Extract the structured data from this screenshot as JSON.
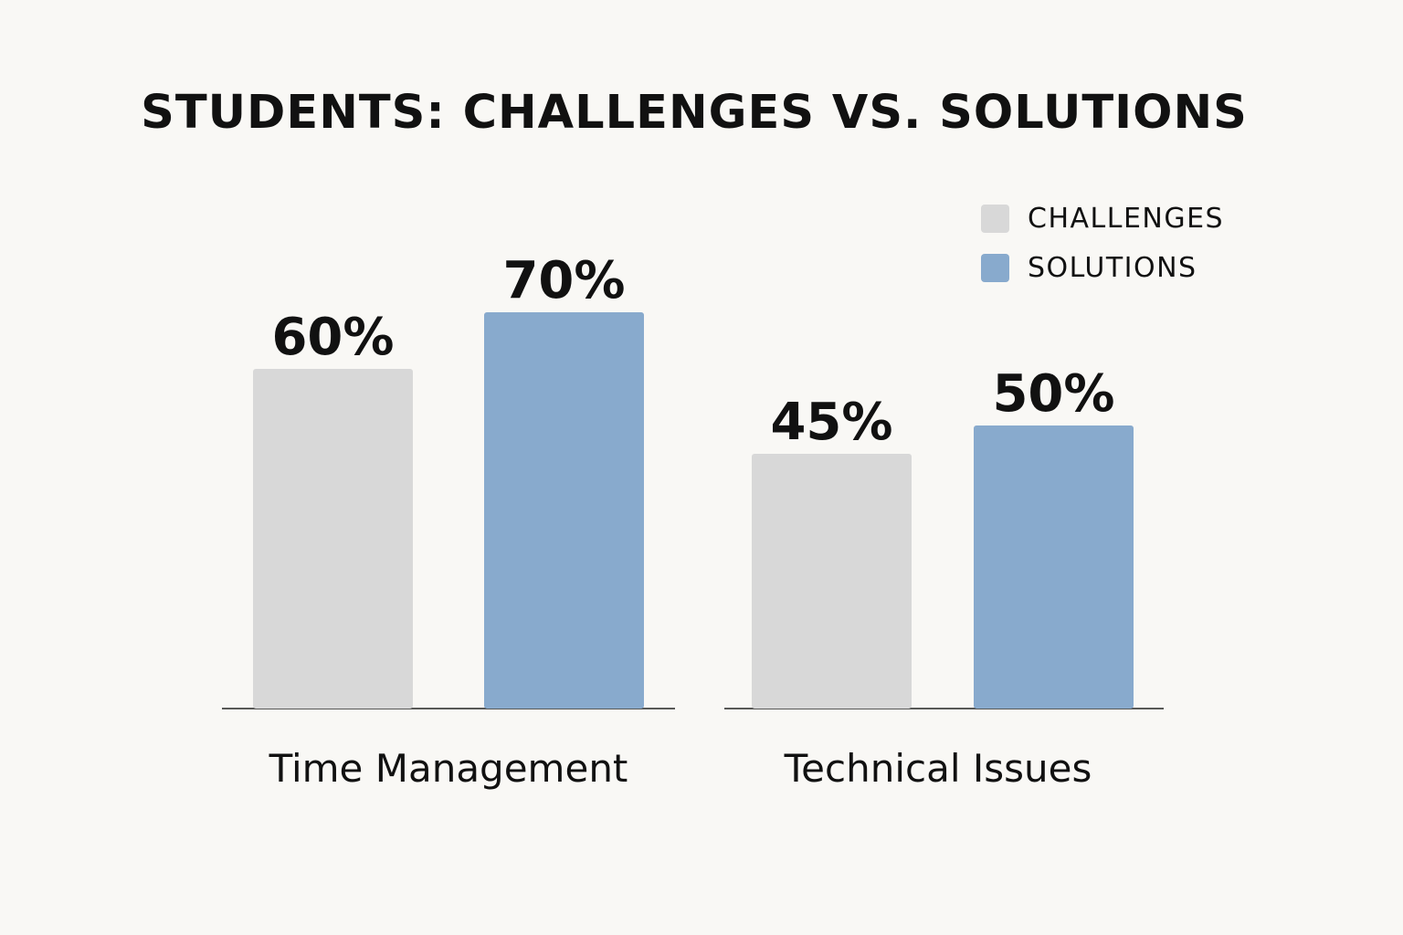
{
  "chart_data": {
    "type": "bar",
    "title": "STUDENTS: CHALLENGES VS. SOLUTIONS",
    "categories": [
      "Time Management",
      "Technical Issues"
    ],
    "series": [
      {
        "name": "CHALLENGES",
        "values": [
          60,
          45
        ],
        "labels": [
          "60%",
          "45%"
        ],
        "color": "#d8d8d8"
      },
      {
        "name": "SOLUTIONS",
        "values": [
          70,
          50
        ],
        "labels": [
          "70%",
          "50%"
        ],
        "color": "#88aacd"
      }
    ],
    "unit": "%",
    "legend": "top-right",
    "grid": false,
    "xlabel": "",
    "ylabel": ""
  }
}
